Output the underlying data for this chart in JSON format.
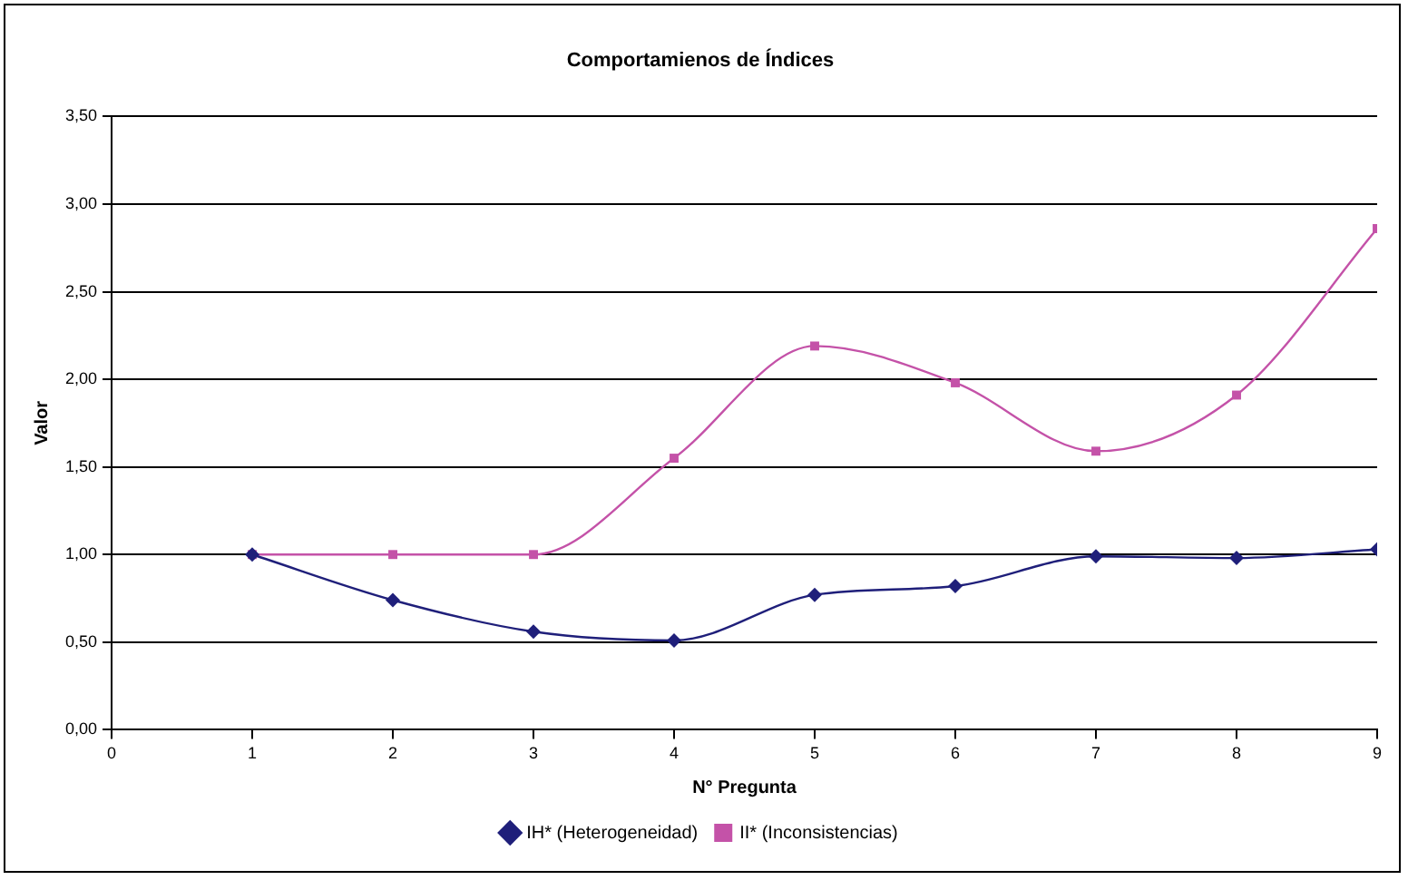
{
  "chart_data": {
    "type": "line",
    "title": "Comportamienos de Índices",
    "xlabel": "N° Pregunta",
    "ylabel": "Valor",
    "x": [
      1,
      2,
      3,
      4,
      5,
      6,
      7,
      8,
      9
    ],
    "xlim": [
      0,
      9
    ],
    "xticks": [
      0,
      1,
      2,
      3,
      4,
      5,
      6,
      7,
      8,
      9
    ],
    "ylim": [
      0,
      3.5
    ],
    "yticks": [
      {
        "value": 0,
        "label": "0,00"
      },
      {
        "value": 0.5,
        "label": "0,50"
      },
      {
        "value": 1,
        "label": "1,00"
      },
      {
        "value": 1.5,
        "label": "1,50"
      },
      {
        "value": 2,
        "label": "2,00"
      },
      {
        "value": 2.5,
        "label": "2,50"
      },
      {
        "value": 3,
        "label": "3,00"
      },
      {
        "value": 3.5,
        "label": "3,50"
      }
    ],
    "grid": "y",
    "legend": "bottom",
    "line_style": "solid",
    "series": [
      {
        "name": "IH* (Heterogeneidad)",
        "color": "#1f1f7a",
        "marker": "diamond",
        "values": [
          1,
          0.74,
          0.56,
          0.51,
          0.77,
          0.82,
          0.99,
          0.98,
          1.03
        ]
      },
      {
        "name": "II* (Inconsistencias)",
        "color": "#c452a8",
        "marker": "square",
        "values": [
          1,
          1,
          1,
          1.55,
          2.19,
          1.98,
          1.59,
          1.91,
          2.86
        ]
      }
    ]
  }
}
